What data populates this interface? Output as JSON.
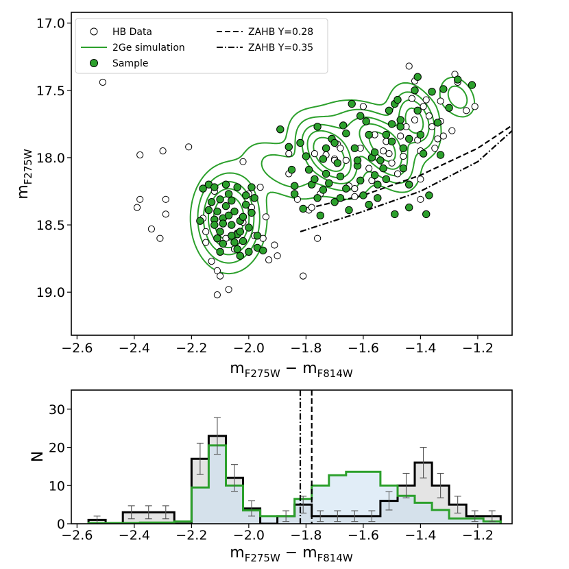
{
  "chart_data": [
    {
      "type": "scatter",
      "panel": "top",
      "xlabel": {
        "main": "m",
        "sub1": "F275W",
        "mid": " − m",
        "sub2": "F814W"
      },
      "ylabel": {
        "main": "m",
        "sub": "F275W"
      },
      "xlim": [
        -2.62,
        -1.08
      ],
      "ylim": [
        19.32,
        16.92
      ],
      "x_ticks": [
        -2.6,
        -2.4,
        -2.2,
        -2.0,
        -1.8,
        -1.6,
        -1.4,
        -1.2
      ],
      "x_tick_labels": [
        "−2.6",
        "−2.4",
        "−2.2",
        "−2.0",
        "−1.8",
        "−1.6",
        "−1.4",
        "−1.2"
      ],
      "y_ticks": [
        17.0,
        17.5,
        18.0,
        18.5,
        19.0
      ],
      "y_tick_labels": [
        "17.0",
        "17.5",
        "18.0",
        "18.5",
        "19.0"
      ],
      "legend_position": "top-left",
      "legend": [
        {
          "label": "HB Data",
          "marker": "open-circle"
        },
        {
          "label": "2Ge simulation",
          "marker": "green-line"
        },
        {
          "label": "Sample",
          "marker": "filled-circle"
        },
        {
          "label": "ZAHB Y=0.28",
          "marker": "dashed-line"
        },
        {
          "label": "ZAHB Y=0.35",
          "marker": "dashdot-line"
        }
      ],
      "zahb_lines": [
        {
          "name": "ZAHB Y=0.28",
          "style": "dashed",
          "points": [
            [
              -1.82,
              18.39
            ],
            [
              -1.6,
              18.28
            ],
            [
              -1.4,
              18.13
            ],
            [
              -1.2,
              17.93
            ],
            [
              -1.08,
              17.76
            ]
          ]
        },
        {
          "name": "ZAHB Y=0.35",
          "style": "dashdot",
          "points": [
            [
              -1.82,
              18.55
            ],
            [
              -1.6,
              18.4
            ],
            [
              -1.4,
              18.25
            ],
            [
              -1.2,
              18.03
            ],
            [
              -1.08,
              17.8
            ]
          ]
        }
      ],
      "contour_levels": [
        0.12,
        0.25,
        0.4,
        0.55,
        0.72
      ],
      "kde_components": [
        {
          "x": -2.07,
          "y": 18.45,
          "sx": 0.065,
          "sy": 0.2,
          "rho": 0.0,
          "w": 1.0
        },
        {
          "x": -1.72,
          "y": 17.98,
          "sx": 0.07,
          "sy": 0.16,
          "rho": 0.5,
          "w": 0.95
        },
        {
          "x": -1.52,
          "y": 17.95,
          "sx": 0.06,
          "sy": 0.16,
          "rho": 0.5,
          "w": 0.75
        },
        {
          "x": -1.42,
          "y": 17.72,
          "sx": 0.05,
          "sy": 0.15,
          "rho": 0.35,
          "w": 0.65
        },
        {
          "x": -1.88,
          "y": 18.1,
          "sx": 0.08,
          "sy": 0.14,
          "rho": 0.55,
          "w": 0.35
        },
        {
          "x": -1.62,
          "y": 17.78,
          "sx": 0.08,
          "sy": 0.14,
          "rho": 0.45,
          "w": 0.3
        },
        {
          "x": -1.27,
          "y": 17.55,
          "sx": 0.04,
          "sy": 0.1,
          "rho": 0.3,
          "w": 0.35
        }
      ],
      "hb_data": [
        [
          -2.51,
          17.44
        ],
        [
          -2.38,
          17.98
        ],
        [
          -2.38,
          18.31
        ],
        [
          -2.39,
          18.37
        ],
        [
          -2.34,
          18.53
        ],
        [
          -2.3,
          17.95
        ],
        [
          -2.29,
          18.31
        ],
        [
          -2.29,
          18.42
        ],
        [
          -2.31,
          18.6
        ],
        [
          -2.21,
          17.92
        ],
        [
          -2.16,
          18.45
        ],
        [
          -2.15,
          18.55
        ],
        [
          -2.15,
          18.63
        ],
        [
          -2.13,
          18.77
        ],
        [
          -2.11,
          18.84
        ],
        [
          -2.1,
          18.88
        ],
        [
          -2.11,
          19.02
        ],
        [
          -2.07,
          18.98
        ],
        [
          -2.05,
          18.68
        ],
        [
          -2.04,
          18.56
        ],
        [
          -2.02,
          18.48
        ],
        [
          -2.0,
          18.27
        ],
        [
          -2.02,
          18.03
        ],
        [
          -1.99,
          18.37
        ],
        [
          -1.96,
          18.22
        ],
        [
          -1.94,
          18.44
        ],
        [
          -1.91,
          18.65
        ],
        [
          -1.9,
          18.73
        ],
        [
          -1.93,
          18.76
        ],
        [
          -1.95,
          18.6
        ],
        [
          -1.98,
          18.58
        ],
        [
          -2.08,
          18.6
        ],
        [
          -2.12,
          18.25
        ],
        [
          -1.86,
          17.97
        ],
        [
          -1.83,
          18.31
        ],
        [
          -1.81,
          18.38
        ],
        [
          -1.79,
          18.39
        ],
        [
          -1.78,
          18.37
        ],
        [
          -1.81,
          18.88
        ],
        [
          -1.76,
          18.6
        ],
        [
          -1.75,
          18.27
        ],
        [
          -1.73,
          17.98
        ],
        [
          -1.7,
          18.01
        ],
        [
          -1.69,
          17.9
        ],
        [
          -1.68,
          17.93
        ],
        [
          -1.66,
          18.02
        ],
        [
          -1.65,
          18.21
        ],
        [
          -1.63,
          18.23
        ],
        [
          -1.61,
          17.93
        ],
        [
          -1.6,
          17.62
        ],
        [
          -1.58,
          18.08
        ],
        [
          -1.56,
          17.83
        ],
        [
          -1.55,
          18.3
        ],
        [
          -1.52,
          17.88
        ],
        [
          -1.51,
          17.97
        ],
        [
          -1.5,
          18.04
        ],
        [
          -1.48,
          18.12
        ],
        [
          -1.46,
          17.99
        ],
        [
          -1.44,
          17.32
        ],
        [
          -1.43,
          17.56
        ],
        [
          -1.42,
          17.72
        ],
        [
          -1.41,
          17.87
        ],
        [
          -1.4,
          17.95
        ],
        [
          -1.4,
          18.16
        ],
        [
          -1.39,
          17.62
        ],
        [
          -1.38,
          17.57
        ],
        [
          -1.37,
          17.69
        ],
        [
          -1.36,
          17.77
        ],
        [
          -1.35,
          17.93
        ],
        [
          -1.34,
          17.86
        ],
        [
          -1.33,
          17.73
        ],
        [
          -1.32,
          17.84
        ],
        [
          -1.33,
          17.58
        ],
        [
          -1.28,
          17.38
        ],
        [
          -1.27,
          17.44
        ],
        [
          -1.24,
          17.65
        ],
        [
          -1.21,
          17.62
        ],
        [
          -1.29,
          17.8
        ],
        [
          -1.4,
          18.31
        ],
        [
          -1.42,
          17.43
        ],
        [
          -1.45,
          17.77
        ],
        [
          -1.47,
          17.84
        ],
        [
          -1.53,
          17.95
        ],
        [
          -1.57,
          18.17
        ],
        [
          -1.63,
          18.29
        ],
        [
          -1.7,
          18.02
        ],
        [
          -1.77,
          17.97
        ],
        [
          -1.86,
          18.12
        ]
      ],
      "sample": [
        [
          -2.14,
          18.2
        ],
        [
          -2.12,
          18.22
        ],
        [
          -2.13,
          18.33
        ],
        [
          -2.14,
          18.39
        ],
        [
          -2.12,
          18.46
        ],
        [
          -2.12,
          18.5
        ],
        [
          -2.1,
          18.55
        ],
        [
          -2.11,
          18.6
        ],
        [
          -2.09,
          18.64
        ],
        [
          -2.1,
          18.7
        ],
        [
          -2.1,
          18.31
        ],
        [
          -2.08,
          18.36
        ],
        [
          -2.09,
          18.45
        ],
        [
          -2.07,
          18.27
        ],
        [
          -2.06,
          18.32
        ],
        [
          -2.05,
          18.4
        ],
        [
          -2.06,
          18.5
        ],
        [
          -2.04,
          18.57
        ],
        [
          -2.05,
          18.63
        ],
        [
          -2.04,
          18.68
        ],
        [
          -2.03,
          18.73
        ],
        [
          -2.03,
          18.47
        ],
        [
          -2.04,
          18.22
        ],
        [
          -2.01,
          18.28
        ],
        [
          -2.01,
          18.35
        ],
        [
          -2.02,
          18.62
        ],
        [
          -2.0,
          18.7
        ],
        [
          -1.99,
          18.22
        ],
        [
          -1.98,
          18.3
        ],
        [
          -1.99,
          18.41
        ],
        [
          -1.97,
          18.58
        ],
        [
          -1.97,
          18.67
        ],
        [
          -2.02,
          18.44
        ],
        [
          -2.08,
          18.2
        ],
        [
          -2.09,
          18.49
        ],
        [
          -2.06,
          18.58
        ],
        [
          -2.03,
          18.55
        ],
        [
          -2.16,
          18.23
        ],
        [
          -2.17,
          18.47
        ],
        [
          -2.11,
          18.4
        ],
        [
          -2.07,
          18.43
        ],
        [
          -2.0,
          18.52
        ],
        [
          -1.95,
          18.69
        ],
        [
          -1.89,
          17.79
        ],
        [
          -1.86,
          17.92
        ],
        [
          -1.85,
          18.09
        ],
        [
          -1.84,
          18.21
        ],
        [
          -1.84,
          18.27
        ],
        [
          -1.82,
          17.89
        ],
        [
          -1.81,
          18.38
        ],
        [
          -1.8,
          17.99
        ],
        [
          -1.79,
          18.09
        ],
        [
          -1.78,
          18.2
        ],
        [
          -1.76,
          17.77
        ],
        [
          -1.76,
          18.3
        ],
        [
          -1.75,
          18.43
        ],
        [
          -1.74,
          18.01
        ],
        [
          -1.73,
          18.12
        ],
        [
          -1.72,
          18.19
        ],
        [
          -1.71,
          17.86
        ],
        [
          -1.7,
          18.33
        ],
        [
          -1.69,
          18.04
        ],
        [
          -1.68,
          18.14
        ],
        [
          -1.67,
          17.76
        ],
        [
          -1.66,
          18.23
        ],
        [
          -1.65,
          18.39
        ],
        [
          -1.64,
          17.6
        ],
        [
          -1.63,
          17.93
        ],
        [
          -1.62,
          18.06
        ],
        [
          -1.61,
          18.17
        ],
        [
          -1.6,
          18.28
        ],
        [
          -1.59,
          17.73
        ],
        [
          -1.58,
          17.83
        ],
        [
          -1.58,
          18.35
        ],
        [
          -1.57,
          18.0
        ],
        [
          -1.56,
          18.13
        ],
        [
          -1.55,
          18.2
        ],
        [
          -1.55,
          18.3
        ],
        [
          -1.54,
          18.02
        ],
        [
          -1.53,
          18.08
        ],
        [
          -1.52,
          17.83
        ],
        [
          -1.51,
          17.65
        ],
        [
          -1.5,
          17.75
        ],
        [
          -1.5,
          17.88
        ],
        [
          -1.49,
          17.6
        ],
        [
          -1.48,
          17.57
        ],
        [
          -1.47,
          17.72
        ],
        [
          -1.47,
          17.77
        ],
        [
          -1.46,
          17.93
        ],
        [
          -1.46,
          18.08
        ],
        [
          -1.44,
          18.2
        ],
        [
          -1.42,
          17.5
        ],
        [
          -1.41,
          17.65
        ],
        [
          -1.4,
          17.83
        ],
        [
          -1.39,
          17.97
        ],
        [
          -1.38,
          18.42
        ],
        [
          -1.37,
          18.28
        ],
        [
          -1.36,
          17.51
        ],
        [
          -1.34,
          17.74
        ],
        [
          -1.33,
          17.98
        ],
        [
          -1.32,
          17.49
        ],
        [
          -1.3,
          17.63
        ],
        [
          -1.27,
          17.42
        ],
        [
          -1.22,
          17.46
        ],
        [
          -1.44,
          18.37
        ],
        [
          -1.49,
          18.42
        ],
        [
          -1.56,
          17.96
        ],
        [
          -1.61,
          17.69
        ],
        [
          -1.66,
          17.82
        ],
        [
          -1.7,
          17.89
        ],
        [
          -1.73,
          17.93
        ],
        [
          -1.77,
          18.16
        ],
        [
          -1.74,
          18.24
        ],
        [
          -1.68,
          18.3
        ],
        [
          -1.62,
          18.02
        ],
        [
          -1.52,
          18.16
        ],
        [
          -1.44,
          17.86
        ],
        [
          -1.41,
          17.4
        ]
      ]
    },
    {
      "type": "histogram",
      "panel": "bottom",
      "xlabel": {
        "main": "m",
        "sub1": "F275W",
        "mid": " − m",
        "sub2": "F814W"
      },
      "ylabel": "N",
      "xlim": [
        -2.62,
        -1.08
      ],
      "ylim": [
        0,
        35
      ],
      "x_ticks": [
        -2.6,
        -2.4,
        -2.2,
        -2.0,
        -1.8,
        -1.6,
        -1.4,
        -1.2
      ],
      "x_tick_labels": [
        "−2.6",
        "−2.4",
        "−2.2",
        "−2.0",
        "−1.8",
        "−1.6",
        "−1.4",
        "−1.2"
      ],
      "y_ticks": [
        0,
        10,
        20,
        30
      ],
      "y_tick_labels": [
        "0",
        "10",
        "20",
        "30"
      ],
      "vlines": [
        {
          "x": -1.82,
          "style": "dashdot"
        },
        {
          "x": -1.78,
          "style": "dashed"
        }
      ],
      "data_histogram": {
        "bin_edges": [
          -2.56,
          -2.5,
          -2.44,
          -2.38,
          -2.32,
          -2.26,
          -2.2,
          -2.14,
          -2.08,
          -2.02,
          -1.96,
          -1.9,
          -1.84,
          -1.78,
          -1.72,
          -1.66,
          -1.6,
          -1.54,
          -1.48,
          -1.42,
          -1.36,
          -1.3,
          -1.24,
          -1.18,
          -1.12
        ],
        "counts": [
          1,
          0,
          3,
          3,
          3,
          0,
          17,
          23,
          12,
          4,
          0,
          2,
          5,
          2,
          2,
          2,
          2,
          6,
          10,
          16,
          10,
          5,
          2,
          2
        ],
        "errors": [
          1.0,
          0.0,
          1.7,
          1.7,
          1.7,
          0.0,
          4.1,
          4.8,
          3.5,
          2.0,
          0.0,
          1.4,
          2.2,
          1.4,
          1.4,
          1.4,
          1.4,
          2.4,
          3.2,
          4.0,
          3.2,
          2.2,
          1.4,
          1.4
        ]
      },
      "simulation_histogram": {
        "bin_edges": [
          -2.56,
          -2.5,
          -2.44,
          -2.38,
          -2.32,
          -2.26,
          -2.2,
          -2.14,
          -2.08,
          -2.02,
          -1.96,
          -1.9,
          -1.84,
          -1.78,
          -1.72,
          -1.66,
          -1.6,
          -1.54,
          -1.48,
          -1.42,
          -1.36,
          -1.3,
          -1.24,
          -1.18,
          -1.12
        ],
        "counts": [
          0.2,
          0.2,
          0.2,
          0.3,
          0.3,
          0.6,
          9.5,
          20.5,
          10.0,
          3.5,
          2.0,
          2.0,
          6.5,
          10.0,
          12.7,
          13.6,
          13.6,
          10.0,
          7.3,
          5.5,
          3.6,
          1.4,
          1.4,
          0.6
        ]
      }
    }
  ]
}
